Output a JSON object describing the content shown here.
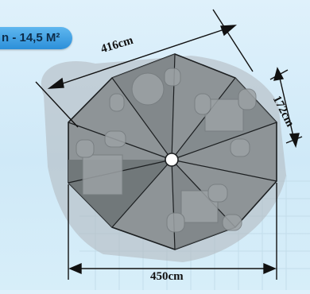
{
  "badge": {
    "text": "n - 14,5 M²"
  },
  "dimensions": {
    "diagonal": "416cm",
    "side": "172cm",
    "width": "450cm"
  },
  "colors": {
    "accent": "#3aa0e6",
    "canopy_light": "#8b9194",
    "canopy_dark": "#6f7578",
    "shadow": "#9aa2a6"
  }
}
